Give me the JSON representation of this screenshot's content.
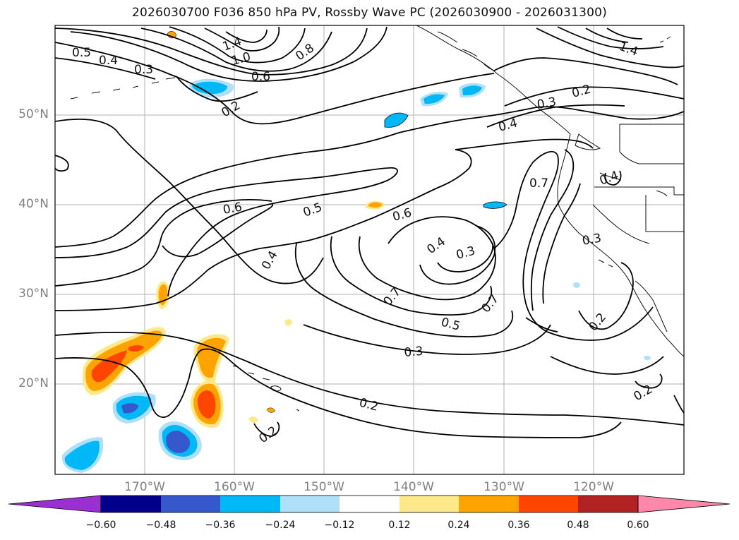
{
  "title": "2026030700 F036 850 hPa PV, Rossby Wave PC (2026030900 - 2026031300)",
  "axes": {
    "y_ticks": [
      "50°N",
      "40°N",
      "30°N",
      "20°N"
    ],
    "x_ticks": [
      "170°W",
      "160°W",
      "150°W",
      "140°W",
      "130°W",
      "120°W"
    ]
  },
  "contour_labels": [
    "0.5",
    "0.4",
    "0.3",
    "1.4",
    "1.0",
    "0.8",
    "0.6",
    "0.2",
    "0.6",
    "0.5",
    "0.6",
    "0.4",
    "0.3",
    "0.7",
    "0.7",
    "0.5",
    "0.3",
    "0.2",
    "0.2",
    "0.4",
    "0.7",
    "0.4",
    "0.3",
    "0.2",
    "0.2",
    "1.4",
    "0.2",
    "0.3",
    "0.4"
  ],
  "colorbar": {
    "ticks": [
      "−0.60",
      "−0.48",
      "−0.36",
      "−0.24",
      "−0.12",
      "0.12",
      "0.24",
      "0.36",
      "0.48",
      "0.60"
    ],
    "colors": [
      "#9a30cf",
      "#00008b",
      "#3558cc",
      "#00b8f5",
      "#aee0fa",
      "#ffffff",
      "#fde98a",
      "#ffa300",
      "#ff4500",
      "#b22222",
      "#ff88aa"
    ]
  }
}
